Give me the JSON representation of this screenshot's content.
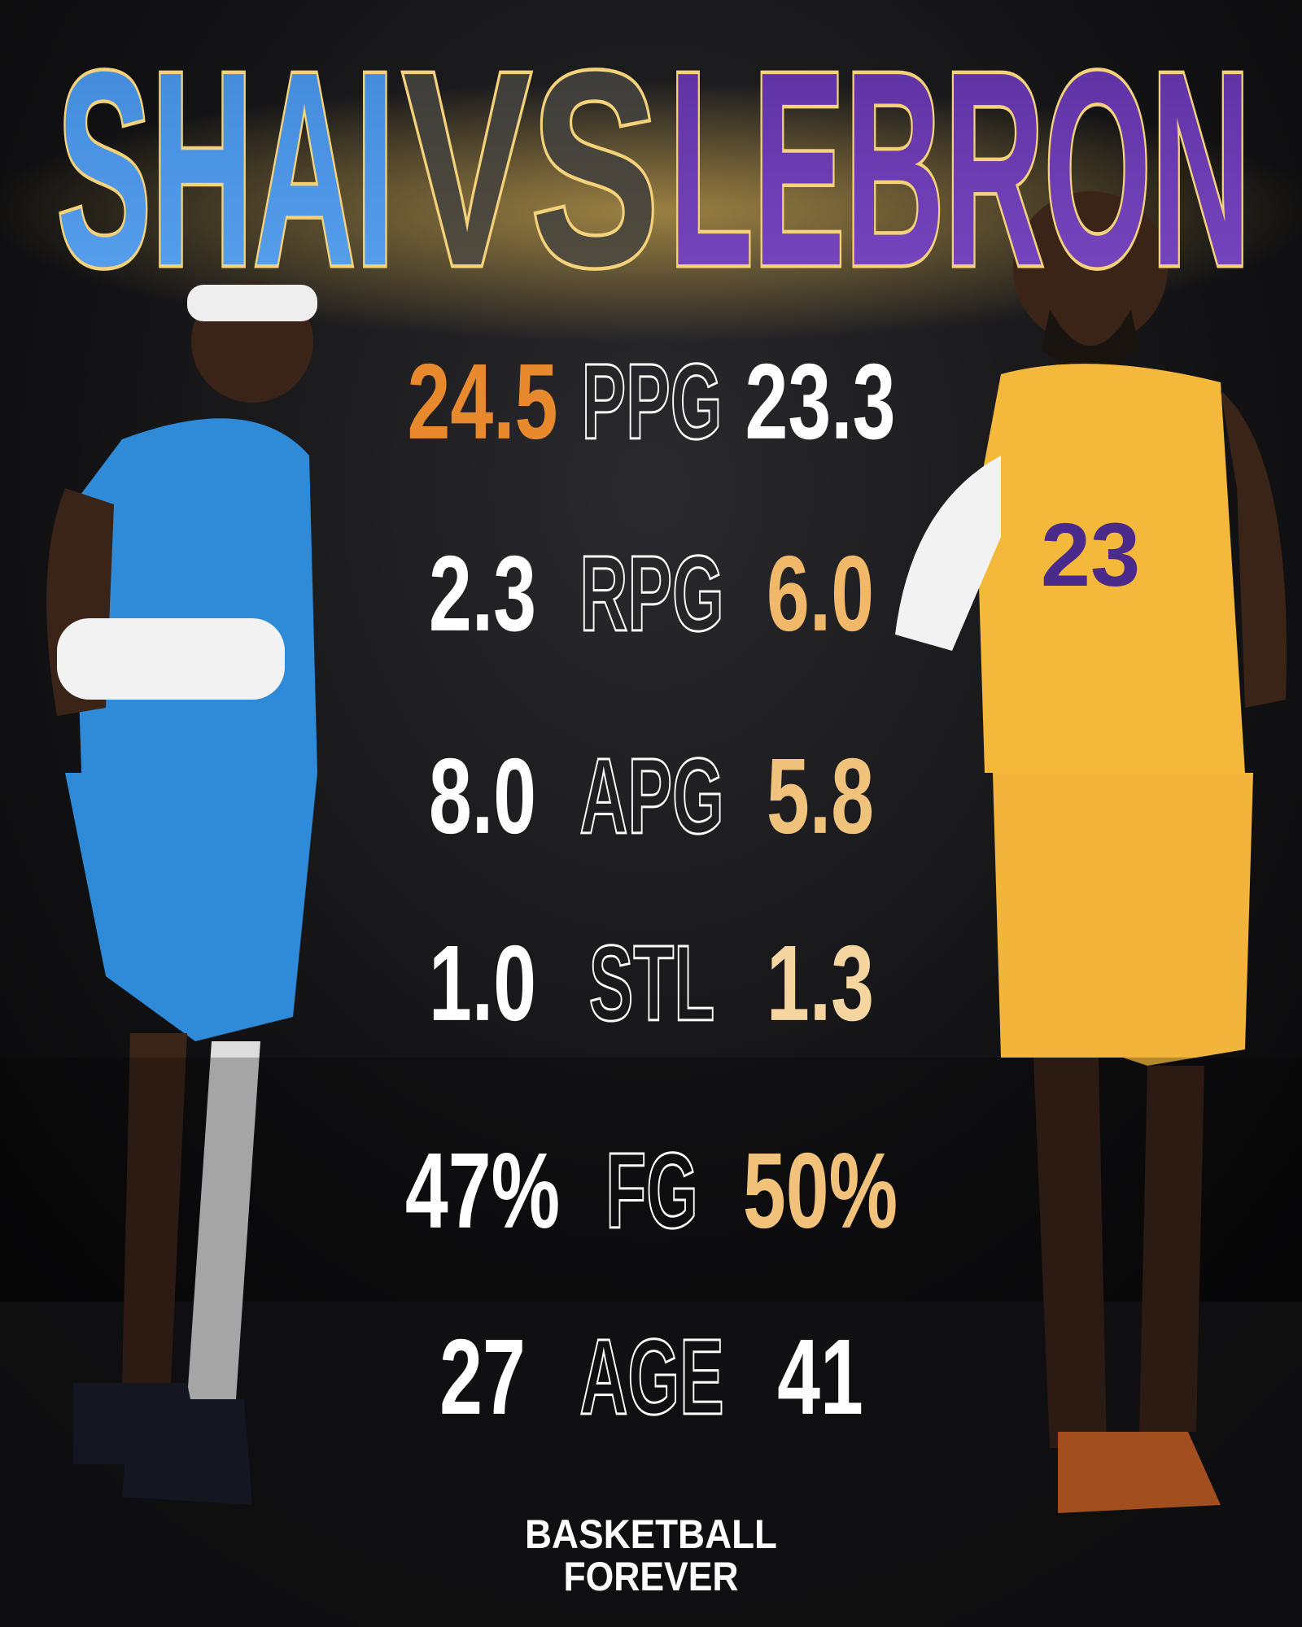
{
  "header": {
    "left_name": "SHAI",
    "vs": "VS",
    "right_name": "LEBRON"
  },
  "stats": [
    {
      "left": "24.5",
      "label": "PPG",
      "right": "23.3",
      "left_color": "#e8892e",
      "right_color": "#ffffff"
    },
    {
      "left": "2.3",
      "label": "RPG",
      "right": "6.0",
      "left_color": "#ffffff",
      "right_color": "#f0b868"
    },
    {
      "left": "8.0",
      "label": "APG",
      "right": "5.8",
      "left_color": "#ffffff",
      "right_color": "#f0c27c"
    },
    {
      "left": "1.0",
      "label": "STL",
      "right": "1.3",
      "left_color": "#ffffff",
      "right_color": "#f6d6a0"
    },
    {
      "left": "47%",
      "label": "FG",
      "right": "50%",
      "left_color": "#ffffff",
      "right_color": "#f2c27a"
    },
    {
      "left": "27",
      "label": "AGE",
      "right": "41",
      "left_color": "#ffffff",
      "right_color": "#ffffff"
    }
  ],
  "footer": {
    "line1": "BASKETBALL",
    "line2": "FOREVER"
  }
}
